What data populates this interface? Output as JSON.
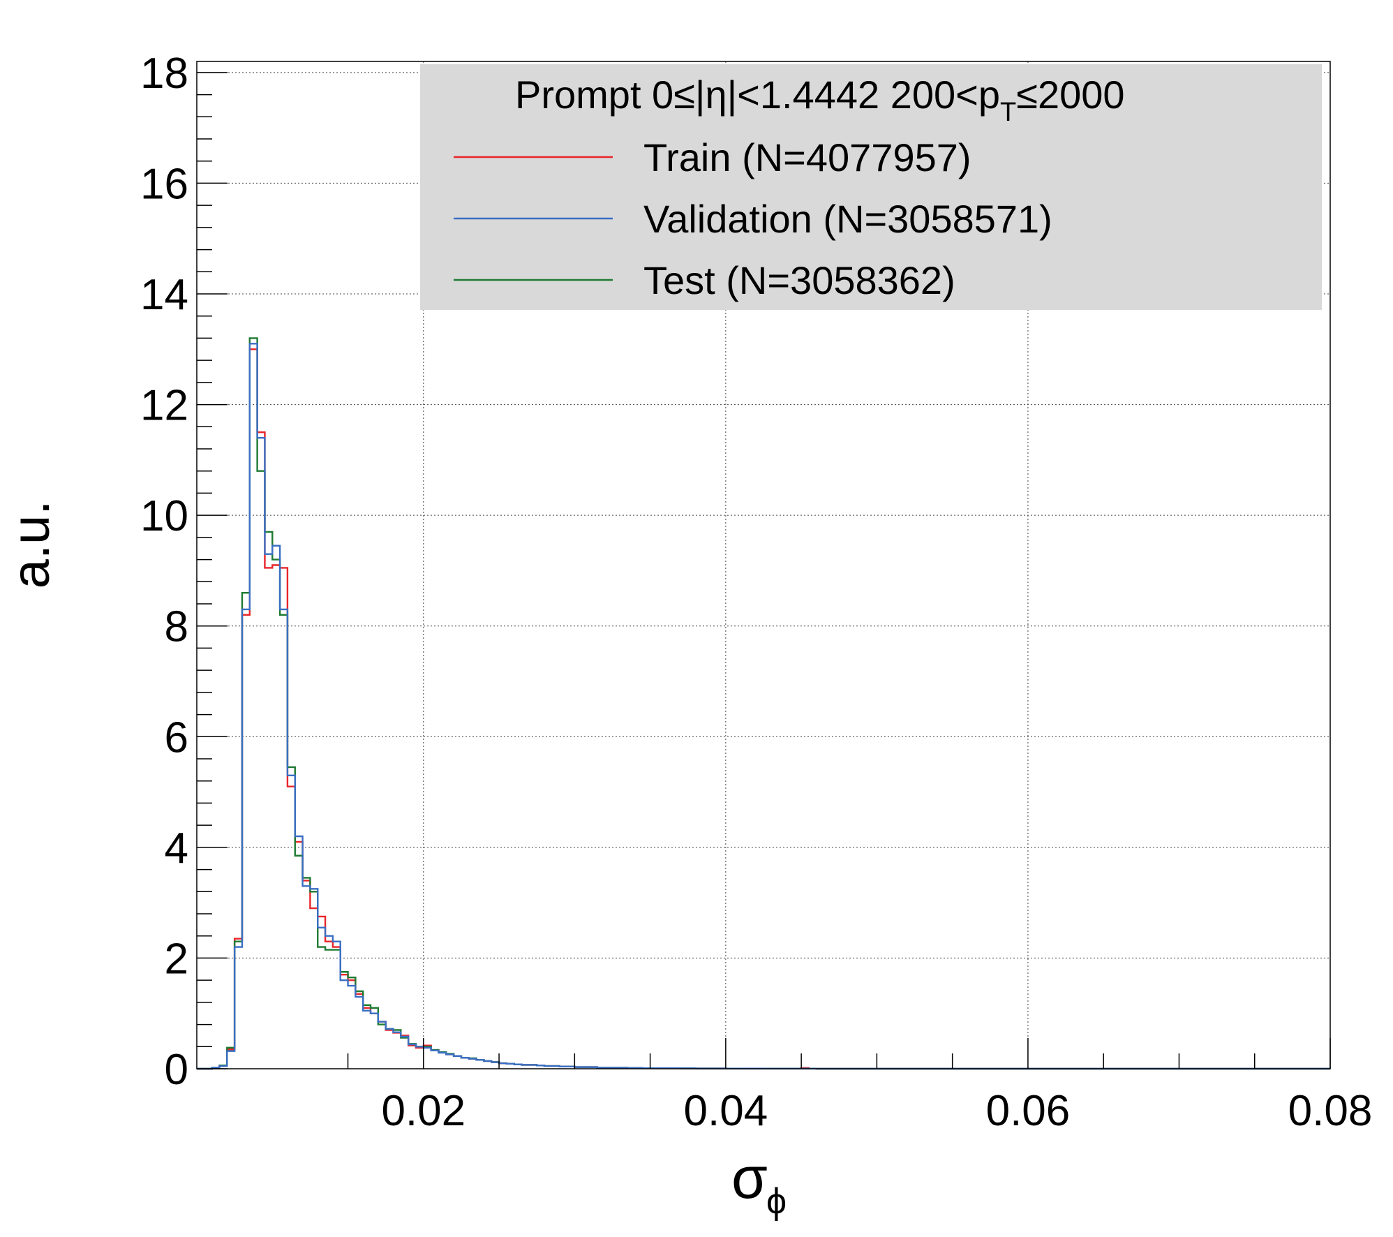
{
  "chart_data": {
    "type": "line",
    "step": true,
    "title": "",
    "xlabel": "σ",
    "xlabel_sub": "ϕ",
    "ylabel": "a.u.",
    "xlim": [
      0.005,
      0.08
    ],
    "ylim": [
      0,
      18.2
    ],
    "x_ticks": [
      0.02,
      0.04,
      0.06,
      0.08
    ],
    "x_tick_labels": [
      "0.02",
      "0.04",
      "0.06",
      "0.08"
    ],
    "y_ticks": [
      0,
      2,
      4,
      6,
      8,
      10,
      12,
      14,
      16,
      18
    ],
    "y_tick_labels": [
      "0",
      "2",
      "4",
      "6",
      "8",
      "10",
      "12",
      "14",
      "16",
      "18"
    ],
    "grid": true,
    "legend": {
      "placement": "top-right",
      "header": {
        "prefix": "Prompt  0≤|η|<1.4442  200<p",
        "sub": "T",
        "suffix": "≤2000"
      }
    },
    "bin_edges_start": 0.005,
    "bin_width": 0.0005,
    "series": [
      {
        "name": "Train (N=4077957)",
        "color": "#e8252a",
        "values": [
          0,
          0,
          0.02,
          0.05,
          0.35,
          2.35,
          8.2,
          13.0,
          11.5,
          9.05,
          9.1,
          9.05,
          5.1,
          4.1,
          3.4,
          2.9,
          2.75,
          2.3,
          2.2,
          1.7,
          1.6,
          1.35,
          1.1,
          1.0,
          0.85,
          0.7,
          0.65,
          0.6,
          0.42,
          0.38,
          0.42,
          0.34,
          0.3,
          0.26,
          0.23,
          0.2,
          0.18,
          0.16,
          0.14,
          0.12,
          0.1,
          0.09,
          0.08,
          0.07,
          0.07,
          0.06,
          0.05,
          0.05,
          0.04,
          0.04,
          0.03,
          0.03,
          0.03,
          0.02,
          0.02,
          0.02,
          0.02,
          0.015,
          0.015,
          0.01,
          0.01,
          0.01,
          0.01,
          0.01,
          0.008,
          0.008,
          0.006,
          0.006,
          0.005,
          0.005,
          0.004,
          0.004,
          0.003,
          0.003,
          0.003,
          0.002,
          0.002,
          0.002,
          0.002,
          0.002,
          0.015,
          0.002,
          0.001,
          0.001,
          0.001,
          0.001,
          0.001,
          0.001,
          0.001,
          0.001,
          0.001,
          0.001,
          0.001,
          0.001,
          0.001,
          0.001,
          0.001,
          0.001,
          0.001,
          0.001,
          0.001,
          0.001,
          0.001,
          0.001,
          0.001,
          0.001,
          0.001,
          0.001,
          0.001,
          0.001,
          0.001,
          0.001,
          0.001,
          0.001,
          0.001,
          0.001,
          0.001,
          0.001,
          0.001,
          0.001,
          0.001,
          0.001,
          0.001,
          0.001,
          0.001,
          0.001,
          0.001,
          0.001,
          0.001,
          0.001,
          0.001,
          0.001,
          0.001,
          0.001,
          0.001,
          0.001,
          0.001,
          0.001,
          0.001,
          0.001,
          0.001,
          0.001,
          0.001,
          0.001,
          0.001,
          0.001,
          0.001,
          0.001,
          0.001,
          0.001
        ]
      },
      {
        "name": "Validation (N=3058571)",
        "color": "#3a6fc4",
        "values": [
          0,
          0,
          0.02,
          0.05,
          0.32,
          2.2,
          8.3,
          13.1,
          11.4,
          9.3,
          9.45,
          8.3,
          5.3,
          4.2,
          3.3,
          3.25,
          2.55,
          2.4,
          2.3,
          1.6,
          1.5,
          1.3,
          1.05,
          1.0,
          0.85,
          0.72,
          0.66,
          0.58,
          0.44,
          0.4,
          0.38,
          0.33,
          0.29,
          0.26,
          0.23,
          0.2,
          0.18,
          0.16,
          0.14,
          0.12,
          0.1,
          0.09,
          0.08,
          0.07,
          0.07,
          0.06,
          0.05,
          0.05,
          0.04,
          0.04,
          0.03,
          0.03,
          0.03,
          0.02,
          0.02,
          0.02,
          0.02,
          0.015,
          0.015,
          0.01,
          0.01,
          0.01,
          0.01,
          0.01,
          0.008,
          0.008,
          0.006,
          0.006,
          0.005,
          0.005,
          0.004,
          0.004,
          0.003,
          0.003,
          0.003,
          0.002,
          0.002,
          0.002,
          0.002,
          0.002,
          0.002,
          0.002,
          0.001,
          0.001,
          0.001,
          0.001,
          0.001,
          0.001,
          0.001,
          0.001,
          0.001,
          0.001,
          0.001,
          0.001,
          0.001,
          0.001,
          0.001,
          0.001,
          0.001,
          0.001,
          0.001,
          0.001,
          0.001,
          0.001,
          0.001,
          0.001,
          0.001,
          0.001,
          0.001,
          0.001,
          0.001,
          0.001,
          0.001,
          0.001,
          0.001,
          0.001,
          0.001,
          0.001,
          0.001,
          0.001,
          0.001,
          0.001,
          0.001,
          0.001,
          0.001,
          0.001,
          0.001,
          0.001,
          0.001,
          0.001,
          0.001,
          0.001,
          0.001,
          0.001,
          0.001,
          0.001,
          0.001,
          0.001,
          0.001,
          0.001,
          0.001,
          0.001,
          0.001,
          0.001,
          0.001,
          0.001,
          0.001,
          0.001,
          0.001,
          0.001
        ]
      },
      {
        "name": "Test (N=3058362)",
        "color": "#1e7a32",
        "values": [
          0,
          0,
          0.02,
          0.06,
          0.38,
          2.3,
          8.6,
          13.2,
          10.8,
          9.7,
          9.2,
          8.2,
          5.45,
          3.85,
          3.45,
          3.2,
          2.2,
          2.15,
          2.15,
          1.75,
          1.65,
          1.4,
          1.15,
          1.1,
          0.8,
          0.72,
          0.7,
          0.56,
          0.45,
          0.4,
          0.4,
          0.34,
          0.3,
          0.27,
          0.23,
          0.2,
          0.19,
          0.16,
          0.14,
          0.12,
          0.1,
          0.09,
          0.08,
          0.07,
          0.07,
          0.06,
          0.05,
          0.05,
          0.04,
          0.04,
          0.03,
          0.03,
          0.03,
          0.02,
          0.02,
          0.02,
          0.02,
          0.015,
          0.015,
          0.01,
          0.01,
          0.01,
          0.01,
          0.01,
          0.008,
          0.008,
          0.006,
          0.006,
          0.005,
          0.005,
          0.004,
          0.004,
          0.003,
          0.003,
          0.003,
          0.002,
          0.002,
          0.002,
          0.002,
          0.002,
          0.002,
          0.002,
          0.001,
          0.001,
          0.001,
          0.001,
          0.001,
          0.001,
          0.001,
          0.001,
          0.001,
          0.001,
          0.001,
          0.001,
          0.001,
          0.001,
          0.001,
          0.001,
          0.001,
          0.001,
          0.001,
          0.001,
          0.001,
          0.001,
          0.001,
          0.001,
          0.001,
          0.001,
          0.001,
          0.001,
          0.001,
          0.001,
          0.001,
          0.001,
          0.001,
          0.001,
          0.001,
          0.001,
          0.001,
          0.001,
          0.001,
          0.001,
          0.001,
          0.001,
          0.001,
          0.001,
          0.001,
          0.001,
          0.001,
          0.001,
          0.001,
          0.001,
          0.001,
          0.001,
          0.001,
          0.001,
          0.001,
          0.001,
          0.001,
          0.001,
          0.001,
          0.001,
          0.001,
          0.001,
          0.001,
          0.001,
          0.001,
          0.001,
          0.001,
          0.001
        ]
      }
    ]
  }
}
